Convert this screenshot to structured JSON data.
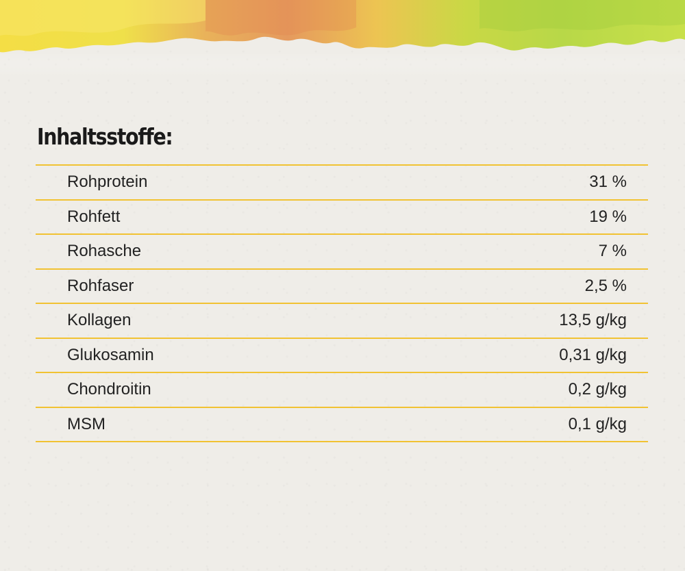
{
  "heading": "Inhaltsstoffe:",
  "colors": {
    "background": "#efede8",
    "divider": "#f1c232",
    "text": "#222222",
    "watercolor": [
      "#f3d83a",
      "#e7a05c",
      "#b6d43e"
    ]
  },
  "rows": [
    {
      "label": "Rohprotein",
      "value": "31 %"
    },
    {
      "label": "Rohfett",
      "value": "19 %"
    },
    {
      "label": "Rohasche",
      "value": "7 %"
    },
    {
      "label": "Rohfaser",
      "value": "2,5 %"
    },
    {
      "label": "Kollagen",
      "value": "13,5 g/kg"
    },
    {
      "label": "Glukosamin",
      "value": "0,31 g/kg"
    },
    {
      "label": "Chondroitin",
      "value": "0,2 g/kg"
    },
    {
      "label": "MSM",
      "value": "0,1 g/kg"
    }
  ]
}
